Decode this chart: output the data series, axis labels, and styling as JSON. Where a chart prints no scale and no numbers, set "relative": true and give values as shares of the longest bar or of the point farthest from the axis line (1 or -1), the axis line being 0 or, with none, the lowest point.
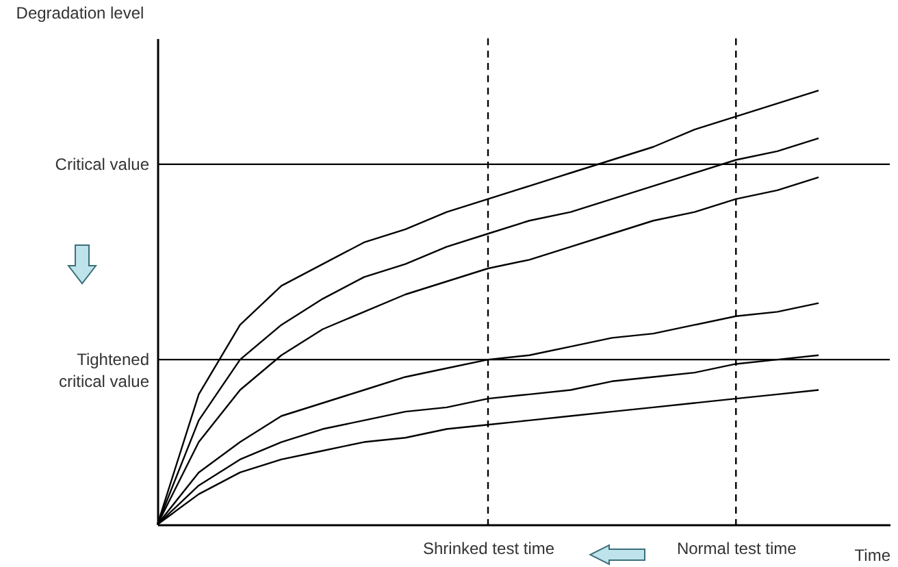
{
  "chart_data": {
    "type": "line",
    "relative": true,
    "xlabel": "Time",
    "ylabel": "Degradation level",
    "marker": "none",
    "line_style": "solid",
    "legend": false,
    "categories": [
      null,
      null,
      null,
      null,
      null,
      null,
      null,
      null,
      "Shrinked test time",
      null,
      null,
      null,
      null,
      null,
      "Normal test time",
      null,
      null
    ],
    "series": [
      {
        "color": "#000000",
        "values": [
          0,
          0.3,
          0.46,
          0.55,
          0.6,
          0.65,
          0.68,
          0.72,
          0.75,
          0.78,
          0.81,
          0.84,
          0.87,
          0.91,
          0.94,
          0.97,
          1
        ]
      },
      {
        "color": "#000000",
        "values": [
          0,
          0.24,
          0.38,
          0.46,
          0.52,
          0.57,
          0.6,
          0.64,
          0.67,
          0.7,
          0.72,
          0.75,
          0.78,
          0.81,
          0.84,
          0.86,
          0.89
        ]
      },
      {
        "color": "#000000",
        "values": [
          0,
          0.19,
          0.31,
          0.39,
          0.45,
          0.49,
          0.53,
          0.56,
          0.59,
          0.61,
          0.64,
          0.67,
          0.7,
          0.72,
          0.75,
          0.77,
          0.8
        ]
      },
      {
        "color": "#000000",
        "values": [
          0,
          0.12,
          0.19,
          0.25,
          0.28,
          0.31,
          0.34,
          0.36,
          0.38,
          0.39,
          0.41,
          0.43,
          0.44,
          0.46,
          0.48,
          0.49,
          0.51
        ]
      },
      {
        "color": "#000000",
        "values": [
          0,
          0.09,
          0.15,
          0.19,
          0.22,
          0.24,
          0.26,
          0.27,
          0.29,
          0.3,
          0.31,
          0.33,
          0.34,
          0.35,
          0.37,
          0.38,
          0.39
        ]
      },
      {
        "color": "#000000",
        "values": [
          0,
          0.07,
          0.12,
          0.15,
          0.17,
          0.19,
          0.2,
          0.22,
          0.23,
          0.24,
          0.25,
          0.26,
          0.27,
          0.28,
          0.29,
          0.3,
          0.31
        ]
      }
    ],
    "ref_lines": [
      {
        "axis": "y",
        "value": 0.83,
        "label": "Critical value",
        "color": "#000000",
        "line_style": "solid"
      },
      {
        "axis": "y",
        "value": 0.38,
        "label": "Tightened critical value",
        "color": "#000000",
        "line_style": "solid"
      },
      {
        "axis": "x",
        "value": "Shrinked test time",
        "color": "#000000",
        "line_style": "dashed"
      },
      {
        "axis": "x",
        "value": "Normal test time",
        "color": "#000000",
        "line_style": "dashed"
      }
    ]
  }
}
